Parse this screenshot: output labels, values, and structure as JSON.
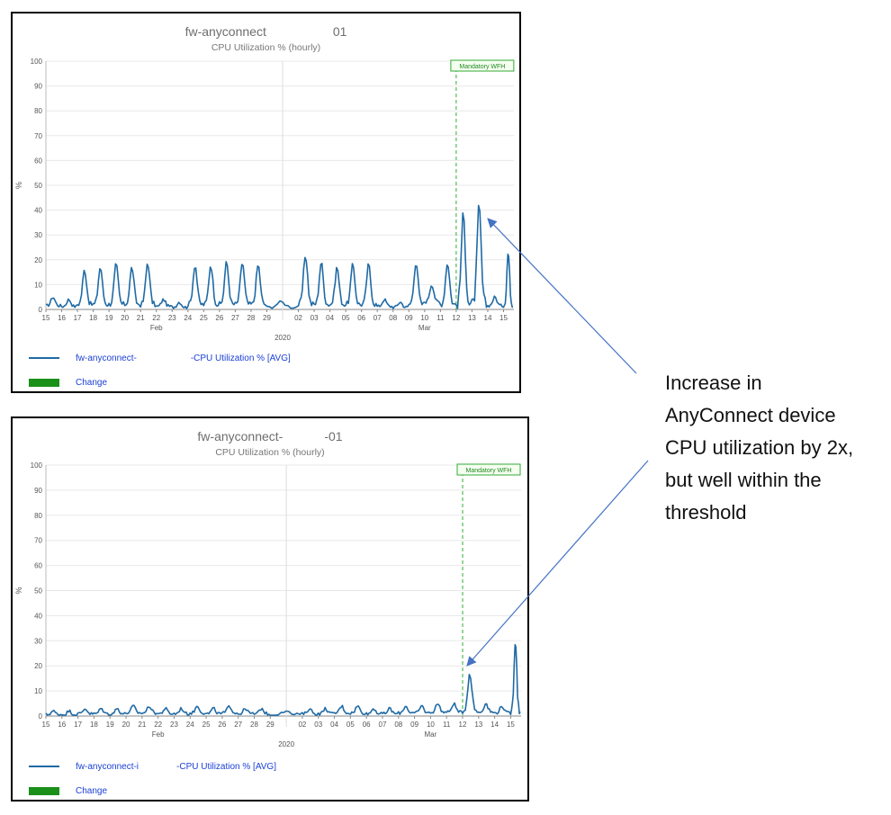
{
  "chart_data": [
    {
      "type": "line",
      "title_left": "fw-anyconnect",
      "title_right": "01",
      "subtitle": "CPU Utilization % (hourly)",
      "ylabel": "%",
      "ylim": [
        0,
        100
      ],
      "y_ticks": [
        "0",
        "10",
        "20",
        "30",
        "40",
        "50",
        "60",
        "70",
        "80",
        "90",
        "100"
      ],
      "x_ticks": [
        "15",
        "16",
        "17",
        "18",
        "19",
        "20",
        "21",
        "22",
        "23",
        "24",
        "25",
        "26",
        "27",
        "28",
        "29",
        "02",
        "03",
        "04",
        "05",
        "06",
        "07",
        "08",
        "09",
        "10",
        "11",
        "12",
        "13",
        "14",
        "15"
      ],
      "month_labels": [
        "Feb",
        "Mar"
      ],
      "year_label": "2020",
      "annotation_label": "Mandatory WFH",
      "annotation_x": "12",
      "series": [
        {
          "daily_peaks": [
            5,
            4,
            16,
            17,
            18,
            17,
            19,
            4,
            3,
            18,
            18,
            19,
            19,
            18,
            3,
            22,
            19,
            17,
            18,
            18,
            4,
            3,
            19,
            10,
            19,
            38,
            41,
            5,
            23
          ],
          "color": "#1f6aa5"
        }
      ],
      "legend": [
        {
          "label_left": "fw-anyconnect-",
          "label_right": "-CPU Utilization % [AVG]",
          "kind": "line",
          "color": "#1f6aa5"
        },
        {
          "label": "Change",
          "kind": "bar",
          "color": "#1a8f1a"
        }
      ]
    },
    {
      "type": "line",
      "title_left": "fw-anyconnect-",
      "title_right": "-01",
      "subtitle": "CPU Utilization % (hourly)",
      "ylabel": "%",
      "ylim": [
        0,
        100
      ],
      "y_ticks": [
        "0",
        "10",
        "20",
        "30",
        "40",
        "50",
        "60",
        "70",
        "80",
        "90",
        "100"
      ],
      "x_ticks": [
        "15",
        "16",
        "17",
        "18",
        "19",
        "20",
        "21",
        "22",
        "23",
        "24",
        "25",
        "26",
        "27",
        "28",
        "29",
        "02",
        "03",
        "04",
        "05",
        "06",
        "07",
        "08",
        "09",
        "10",
        "11",
        "12",
        "13",
        "14",
        "15"
      ],
      "month_labels": [
        "Feb",
        "Mar"
      ],
      "year_label": "2020",
      "annotation_label": "Mandatory WFH",
      "annotation_x": "12",
      "series": [
        {
          "daily_peaks": [
            2,
            2,
            3,
            3,
            3,
            4,
            4,
            3,
            3,
            4,
            3,
            4,
            3,
            3,
            2,
            3,
            3,
            4,
            4,
            3,
            3,
            4,
            4,
            5,
            5,
            17,
            5,
            4,
            31
          ],
          "color": "#1f6aa5"
        }
      ],
      "legend": [
        {
          "label_left": "fw-anyconnect-i",
          "label_right": "-CPU Utilization % [AVG]",
          "kind": "line",
          "color": "#1f6aa5"
        },
        {
          "label": "Change",
          "kind": "bar",
          "color": "#1a8f1a"
        }
      ]
    }
  ],
  "annotation": {
    "lines": [
      "Increase in",
      "AnyConnect device",
      "CPU utilization by 2x,",
      "but well within the",
      "threshold"
    ]
  }
}
